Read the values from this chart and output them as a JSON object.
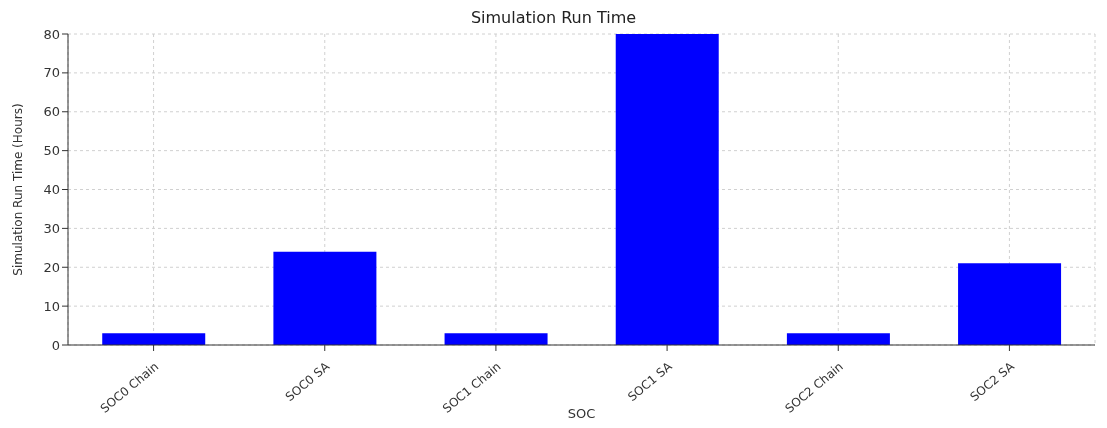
{
  "chart_data": {
    "type": "bar",
    "title": "Simulation Run Time",
    "xlabel": "SOC",
    "ylabel": "Simulation Run Time (Hours)",
    "categories": [
      "SOC0 Chain",
      "SOC0 SA",
      "SOC1 Chain",
      "SOC1 SA",
      "SOC2 Chain",
      "SOC2 SA"
    ],
    "values": [
      3,
      24,
      3,
      80,
      3,
      21
    ],
    "color": "#0000ff",
    "ylim": [
      0,
      80
    ],
    "yticks": [
      0,
      10,
      20,
      30,
      40,
      50,
      60,
      70,
      80
    ],
    "grid": true
  }
}
